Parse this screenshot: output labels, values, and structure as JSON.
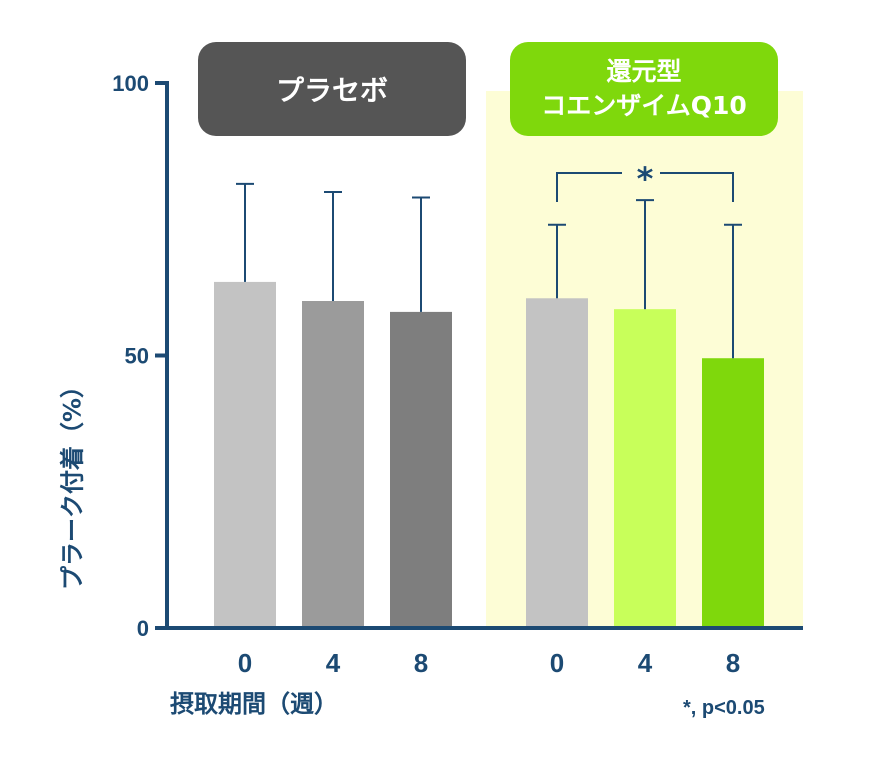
{
  "chart_data": {
    "type": "bar",
    "ylabel": "プラーク付着（%）",
    "xlabel": "摂取期間（週）",
    "ylim": [
      0,
      100
    ],
    "yticks": [
      0,
      50,
      100
    ],
    "categories": [
      "0",
      "4",
      "8"
    ],
    "groups": [
      {
        "name": "プラセボ",
        "values": [
          63.5,
          60,
          58
        ],
        "error_upper": [
          81.5,
          80,
          79
        ],
        "colors": [
          "#c3c3c3",
          "#9b9b9b",
          "#7e7e7e"
        ]
      },
      {
        "name": "還元型\nコエンザイムQ10",
        "name_lines": [
          "還元型",
          "コエンザイムQ10"
        ],
        "values": [
          60.5,
          58.5,
          49.5
        ],
        "error_upper": [
          74,
          78.5,
          74
        ],
        "colors": [
          "#c3c3c3",
          "#c8ff5a",
          "#7fd80c"
        ]
      }
    ],
    "significance": {
      "group": 1,
      "from": 0,
      "to": 2,
      "label": "*"
    },
    "footnote": "*, p<0.05",
    "colors": {
      "axis": "#1c4a73",
      "highlight_background": "#fdfdd6",
      "placebo_badge": "#555555",
      "coq10_badge": "#7fd80c"
    }
  }
}
